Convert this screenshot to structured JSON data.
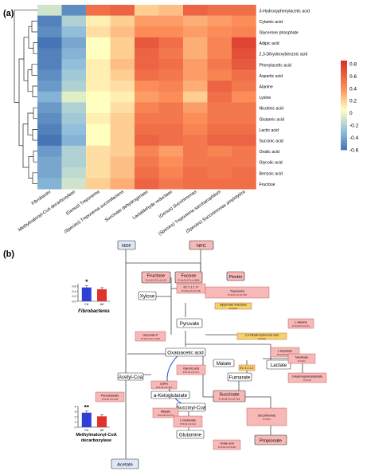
{
  "panel_a": {
    "label": "(a)"
  },
  "panel_b": {
    "label": "(b)"
  },
  "chart_data": [
    {
      "type": "heatmap",
      "rows": [
        "3-Hydroxyphenylacetic acid",
        "Cylamic acid",
        "Glycerone phosphate",
        "Adipic acid",
        "2,3-Dihydroxybenzoic acid",
        "Phenylacetic acid",
        "Aspartic acid",
        "Alanine",
        "Lysine",
        "Nicotinic acid",
        "Glutamic acid",
        "Lactic acid",
        "Succinic acid",
        "Oxalic acid",
        "Glycolic acid",
        "Benzoic acid",
        "Fructose"
      ],
      "columns": [
        "Fibrobacter",
        "Methylmalonyl-CoA decarboxylase",
        "(Genus) Treponema",
        "(Species) Treponema succinifaciens",
        "Succinate dehydrogenase",
        "Lactaldehyde reductase",
        "(Genus) Succinimonas",
        "(Species) Treponema saccharophilum",
        "(Species) Succinimonas amylolytica"
      ],
      "values": [
        [
          -0.1,
          -0.5,
          0.55,
          0.6,
          0.2,
          0.25,
          0.6,
          0.55,
          0.55
        ],
        [
          -0.55,
          -0.2,
          0.1,
          0.2,
          0.35,
          0.35,
          0.3,
          0.35,
          0.4
        ],
        [
          -0.5,
          -0.3,
          0.15,
          0.25,
          0.4,
          0.4,
          0.35,
          0.4,
          0.45
        ],
        [
          -0.6,
          -0.4,
          0.05,
          0.2,
          0.65,
          0.55,
          0.3,
          0.45,
          0.75
        ],
        [
          -0.55,
          -0.35,
          0.05,
          0.2,
          0.6,
          0.5,
          0.3,
          0.45,
          0.7
        ],
        [
          -0.55,
          -0.3,
          0.1,
          0.25,
          0.6,
          0.55,
          0.35,
          0.5,
          0.65
        ],
        [
          -0.5,
          -0.25,
          0.1,
          0.2,
          0.55,
          0.5,
          0.35,
          0.45,
          0.55
        ],
        [
          -0.45,
          -0.2,
          0.1,
          0.15,
          0.4,
          0.45,
          0.3,
          0.6,
          0.5
        ],
        [
          -0.35,
          -0.05,
          0.05,
          0.1,
          0.35,
          0.4,
          0.2,
          0.55,
          0.4
        ],
        [
          -0.45,
          -0.2,
          0.05,
          0.15,
          0.45,
          0.5,
          0.35,
          0.5,
          0.5
        ],
        [
          -0.5,
          -0.25,
          0.1,
          0.2,
          0.5,
          0.5,
          0.4,
          0.5,
          0.5
        ],
        [
          -0.55,
          -0.3,
          0.05,
          0.2,
          0.55,
          0.55,
          0.45,
          0.55,
          0.55
        ],
        [
          -0.6,
          -0.35,
          0.05,
          0.2,
          0.6,
          0.55,
          0.5,
          0.6,
          0.6
        ],
        [
          -0.45,
          -0.2,
          0.15,
          0.2,
          0.45,
          0.35,
          0.5,
          0.45,
          0.5
        ],
        [
          -0.4,
          -0.2,
          0.15,
          0.25,
          0.5,
          0.4,
          0.5,
          0.5,
          0.5
        ],
        [
          -0.4,
          -0.15,
          0.15,
          0.25,
          0.55,
          0.45,
          0.55,
          0.5,
          0.55
        ],
        [
          -0.35,
          -0.1,
          0.2,
          0.3,
          0.6,
          0.5,
          0.55,
          0.55,
          0.55
        ]
      ],
      "colorbar": {
        "ticks": [
          0.8,
          0.6,
          0.4,
          0.2,
          0,
          -0.2,
          -0.4,
          -0.6
        ],
        "range": [
          -0.6,
          0.85
        ]
      },
      "dendrogram": "left"
    },
    {
      "type": "bar",
      "categories": [
        "Ctr",
        "Alf"
      ],
      "values": [
        0.55,
        0.48
      ],
      "ylim": [
        0,
        0.7
      ],
      "yticks": [
        "0.0",
        "0.2",
        "0.4",
        "0.6"
      ],
      "title": "Fibrobacteres",
      "significance": "*",
      "colors": [
        "#2f3fd6",
        "#e0342a"
      ]
    },
    {
      "type": "bar",
      "categories": [
        "Ctr",
        "Alf"
      ],
      "values": [
        2.8,
        2.1
      ],
      "ylim": [
        0,
        4
      ],
      "yticks": [
        "0",
        "1",
        "2",
        "3",
        "4"
      ],
      "title": "Methylmalonyl-CoA decarboxylase",
      "significance": "**",
      "colors": [
        "#2f3fd6",
        "#e0342a"
      ]
    }
  ],
  "pathway": {
    "nodes": [
      {
        "name": "ndf",
        "text": "NDF",
        "kind": "blue"
      },
      {
        "name": "nfc",
        "text": "NFC",
        "kind": "pink"
      },
      {
        "name": "fructose",
        "text": "Fructose",
        "sub": "P=0.21 FC=1.107",
        "kind": "pink"
      },
      {
        "name": "fucose",
        "text": "Fucose",
        "sub": "P=0.01 FC=0.529",
        "kind": "pink"
      },
      {
        "name": "pectin",
        "text": "Pectin",
        "kind": "pink"
      },
      {
        "name": "xylose",
        "text": "Xylose",
        "kind": "white"
      },
      {
        "name": "pyruvate",
        "text": "Pyruvate",
        "kind": "white"
      },
      {
        "name": "oxaloacetic",
        "text": "Oxaloacetic acid",
        "kind": "white"
      },
      {
        "name": "malate",
        "text": "Malate",
        "kind": "white"
      },
      {
        "name": "fumarate",
        "text": "Fumarate",
        "kind": "white"
      },
      {
        "name": "lactate",
        "text": "Lactate",
        "kind": "white"
      },
      {
        "name": "acetyl",
        "text": "Acetyl-Coa",
        "kind": "white"
      },
      {
        "name": "ketoglutarate",
        "text": "a-Ketoglutarate",
        "kind": "white"
      },
      {
        "name": "succinylcoa",
        "text": "Succinyl-Coa",
        "kind": "white"
      },
      {
        "name": "succinate",
        "text": "Succinate",
        "sub": "P=0.01 FC=0.713",
        "kind": "pink"
      },
      {
        "name": "glutamine",
        "text": "Glutamine",
        "kind": "white"
      },
      {
        "name": "acetate",
        "text": "Acetate",
        "kind": "blue"
      },
      {
        "name": "propionate",
        "text": "Propionate",
        "kind": "pink"
      }
    ],
    "notes": [
      {
        "text": "EC 1.1.1.77",
        "sub": "P=0.01 FC=0.745"
      },
      {
        "text": "Treponema",
        "sub": "P=0.01 FC=0.745"
      },
      {
        "text": "Dipyruvate reductase",
        "sub": "P=0.03"
      },
      {
        "text": "Glycerate-P",
        "sub": "P=0.01 FC=1.165"
      },
      {
        "text": "2,3-Dihydroxybenzoic acid",
        "sub": "P=0.02"
      },
      {
        "text": "L-Alanine",
        "sub": "P=0.02 FC=0.41"
      },
      {
        "text": "L-Aspartate",
        "sub": "P=0.06 FC=0.1"
      },
      {
        "text": "Glycolic acid",
        "sub": "P=0.01 FC=0.1"
      },
      {
        "text": "EC 4.2.1.2",
        "sub": ""
      },
      {
        "text": "Phenylacetate",
        "sub": "P=0.01 FC=0.8"
      },
      {
        "text": "Lysine",
        "sub": "P=0.01 FC=0.6"
      },
      {
        "text": "Adipate",
        "sub": "P=0.01 FC=0.4"
      },
      {
        "text": "L-Glutamate",
        "sub": "P=0.01 FC=0.2"
      },
      {
        "text": "Succinimonas",
        "sub": "P=0.01"
      },
      {
        "text": "Oxalic acid",
        "sub": "P=0.01 FC=0.28"
      },
      {
        "text": "3-Hydroxyphenylacetate",
        "sub": "P=0.01"
      },
      {
        "text": "Nicotinate",
        "sub": "P=0.01"
      }
    ]
  }
}
